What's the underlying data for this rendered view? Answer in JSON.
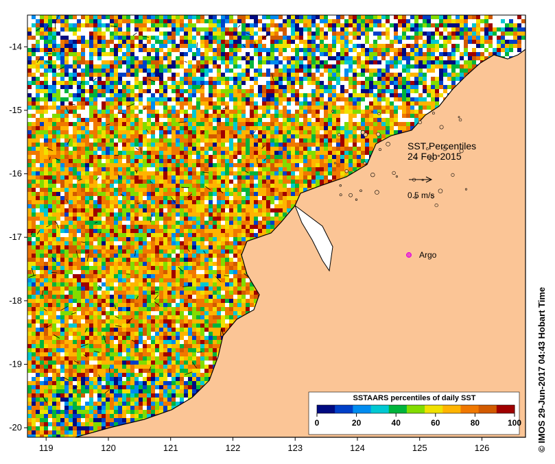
{
  "map": {
    "title": "SST Percentiles",
    "date": "24 Feb 2015",
    "vector_scale_label": "0.5 m/s",
    "argo_label": "Argo",
    "credit": "© IMOS 29-Jun-2017 04:43 Hobart Time",
    "lon_ticks": [
      "119",
      "120",
      "121",
      "122",
      "123",
      "124",
      "125",
      "126"
    ],
    "lat_ticks": [
      "-14",
      "-15",
      "-16",
      "-17",
      "-18",
      "-19",
      "-20"
    ],
    "lon_range": [
      118.7,
      126.7
    ],
    "lat_range": [
      -20.15,
      -13.5
    ]
  },
  "legend": {
    "title": "SSTAARS percentiles of daily SST",
    "tick_labels": [
      "0",
      "20",
      "40",
      "60",
      "80",
      "100"
    ],
    "colors": [
      "#000a80",
      "#0040c8",
      "#008cf0",
      "#00c8d2",
      "#00b43c",
      "#82dc00",
      "#f0e100",
      "#ffb400",
      "#f07800",
      "#d25a00",
      "#a00000"
    ]
  },
  "style": {
    "land_color": "#fbc596",
    "coast_color": "#000000",
    "argo_color": "#e000e0"
  }
}
